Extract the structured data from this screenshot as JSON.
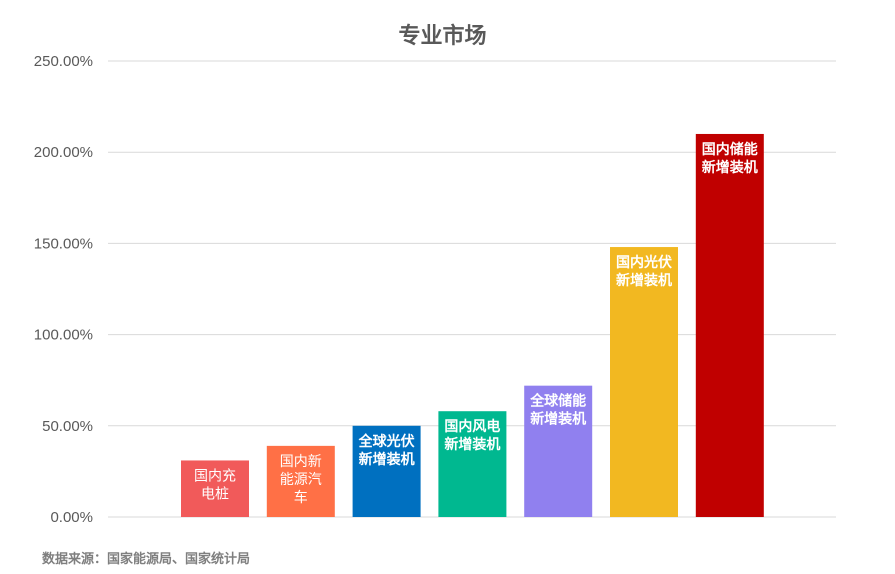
{
  "title": "专业市场",
  "source_note": "数据来源：国家能源局、国家统计局",
  "chart_data": {
    "type": "bar",
    "title": "专业市场",
    "xlabel": "",
    "ylabel": "",
    "ylim": [
      0,
      2.5
    ],
    "y_ticks": [
      {
        "value": 0,
        "label": "0.00%"
      },
      {
        "value": 0.5,
        "label": "50.00%"
      },
      {
        "value": 1.0,
        "label": "100.00%"
      },
      {
        "value": 1.5,
        "label": "150.00%"
      },
      {
        "value": 2.0,
        "label": "200.00%"
      },
      {
        "value": 2.5,
        "label": "250.00%"
      }
    ],
    "grid": true,
    "categories": [
      {
        "lines": [
          "国内充",
          "电桩"
        ],
        "bold": false
      },
      {
        "lines": [
          "国内新",
          "能源汽",
          "车"
        ],
        "bold": false
      },
      {
        "lines": [
          "全球光伏",
          "新增装机"
        ],
        "bold": true
      },
      {
        "lines": [
          "国内风电",
          "新增装机"
        ],
        "bold": true
      },
      {
        "lines": [
          "全球储能",
          "新增装机"
        ],
        "bold": true
      },
      {
        "lines": [
          "国内光伏",
          "新增装机"
        ],
        "bold": true
      },
      {
        "lines": [
          "国内储能",
          "新增装机"
        ],
        "bold": true
      }
    ],
    "values": [
      0.31,
      0.39,
      0.5,
      0.58,
      0.72,
      1.48,
      2.1
    ],
    "colors": [
      "#f15a5a",
      "#ff7046",
      "#0070c0",
      "#00b890",
      "#9080ef",
      "#f2b821",
      "#c00000"
    ]
  }
}
